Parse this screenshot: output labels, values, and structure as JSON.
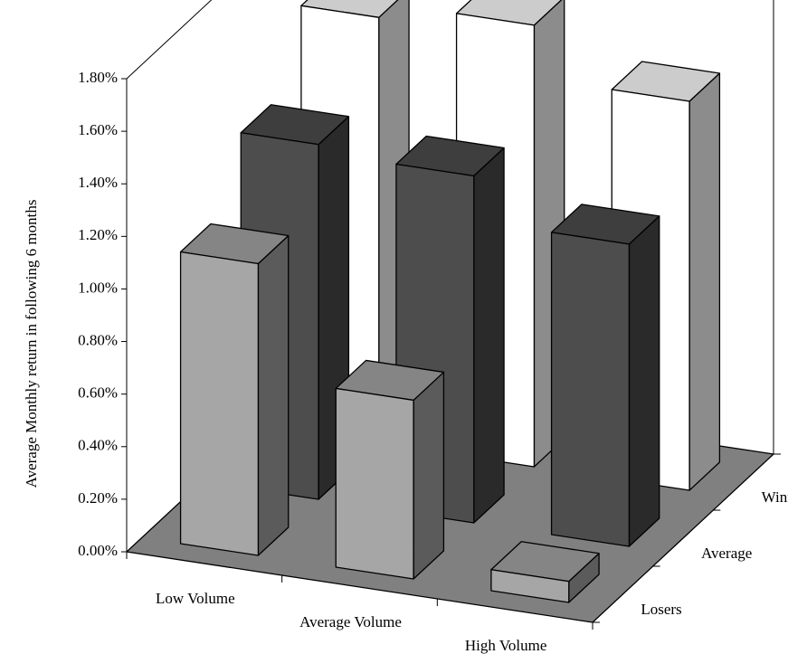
{
  "chart_data": {
    "type": "bar3d",
    "y_label": "Average Monthly return in following 6 months",
    "categories": [
      "Low Volume",
      "Average Volume",
      "High Volume"
    ],
    "series": [
      {
        "name": "Losers",
        "color": "#a6a6a6",
        "values": [
          1.11,
          0.68,
          0.08
        ]
      },
      {
        "name": "Average",
        "color": "#4d4d4d",
        "values": [
          1.35,
          1.32,
          1.15
        ]
      },
      {
        "name": "Winners",
        "color": "#ffffff",
        "values": [
          1.62,
          1.68,
          1.48
        ]
      }
    ],
    "ylim": [
      0,
      1.8
    ],
    "yticks": [
      {
        "value": 0,
        "label": "0.00%"
      },
      {
        "value": 0.2,
        "label": "0.20%"
      },
      {
        "value": 0.4,
        "label": "0.40%"
      },
      {
        "value": 0.6,
        "label": "0.60%"
      },
      {
        "value": 0.8,
        "label": "0.80%"
      },
      {
        "value": 1.0,
        "label": "1.00%"
      },
      {
        "value": 1.2,
        "label": "1.20%"
      },
      {
        "value": 1.4,
        "label": "1.40%"
      },
      {
        "value": 1.6,
        "label": "1.60%"
      },
      {
        "value": 1.8,
        "label": "1.80%"
      }
    ],
    "floor_color": "#808080"
  }
}
